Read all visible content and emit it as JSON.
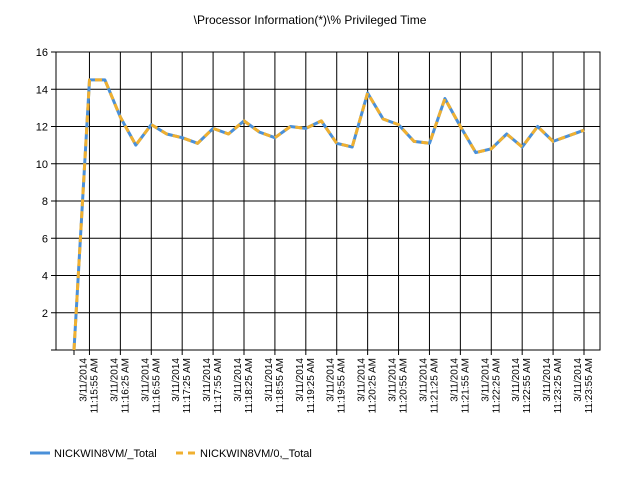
{
  "chart_data": {
    "type": "line",
    "title": "\\Processor Information(*)\\% Privileged Time",
    "xlabel": "",
    "ylabel": "",
    "ylim": [
      0,
      16
    ],
    "yticks": [
      2,
      4,
      6,
      8,
      10,
      12,
      14,
      16
    ],
    "grid": true,
    "legend_position": "bottom-left",
    "category_labels": [
      {
        "date": "3/11/2014",
        "time": "11:15:55 AM"
      },
      {
        "date": "3/11/2014",
        "time": "11:16:25 AM"
      },
      {
        "date": "3/11/2014",
        "time": "11:16:55 AM"
      },
      {
        "date": "3/11/2014",
        "time": "11:17:25 AM"
      },
      {
        "date": "3/11/2014",
        "time": "11:17:55 AM"
      },
      {
        "date": "3/11/2014",
        "time": "11:18:25 AM"
      },
      {
        "date": "3/11/2014",
        "time": "11:18:55 AM"
      },
      {
        "date": "3/11/2014",
        "time": "11:19:25 AM"
      },
      {
        "date": "3/11/2014",
        "time": "11:19:55 AM"
      },
      {
        "date": "3/11/2014",
        "time": "11:20:25 AM"
      },
      {
        "date": "3/11/2014",
        "time": "11:20:55 AM"
      },
      {
        "date": "3/11/2014",
        "time": "11:21:25 AM"
      },
      {
        "date": "3/11/2014",
        "time": "11:21:55 AM"
      },
      {
        "date": "3/11/2014",
        "time": "11:22:25 AM"
      },
      {
        "date": "3/11/2014",
        "time": "11:22:55 AM"
      },
      {
        "date": "3/11/2014",
        "time": "11:23:25 AM"
      },
      {
        "date": "3/11/2014",
        "time": "11:23:55 AM"
      }
    ],
    "series": [
      {
        "name": "NICKWIN8VM/_Total",
        "color": "#4a90d9",
        "style": "solid",
        "values": [
          0.0,
          14.5,
          14.5,
          12.5,
          11.0,
          12.1,
          11.6,
          11.4,
          11.1,
          11.9,
          11.6,
          12.3,
          11.7,
          11.4,
          12.0,
          11.9,
          12.3,
          11.1,
          10.9,
          13.8,
          12.4,
          12.1,
          11.2,
          11.1,
          13.5,
          12.0,
          10.6,
          10.8,
          11.6,
          10.9,
          12.0,
          11.2,
          11.5,
          11.8
        ]
      },
      {
        "name": "NICKWIN8VM/0,_Total",
        "color": "#f0b030",
        "style": "dashed",
        "values": [
          0.0,
          14.5,
          14.5,
          12.5,
          11.0,
          12.1,
          11.6,
          11.4,
          11.1,
          11.9,
          11.6,
          12.3,
          11.7,
          11.4,
          12.0,
          11.9,
          12.3,
          11.1,
          10.9,
          13.8,
          12.4,
          12.1,
          11.2,
          11.1,
          13.5,
          12.0,
          10.6,
          10.8,
          11.6,
          10.9,
          12.0,
          11.2,
          11.5,
          11.8
        ]
      }
    ]
  }
}
